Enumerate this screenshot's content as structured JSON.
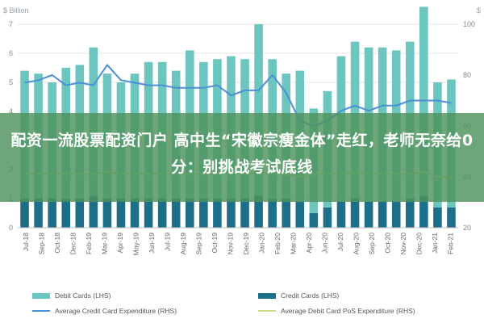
{
  "headline": "配资一流股票配资门户 高中生“宋徽宗瘦金体”走红，老师无奈给0分：别挑战考试底线",
  "chart_data": {
    "type": "bar",
    "y_left_unit": "$ Billion",
    "y_right_unit": "$",
    "ylim_left": [
      0,
      7
    ],
    "yticks_left": [
      "0",
      "1",
      "2",
      "3",
      "4",
      "5",
      "6",
      "7"
    ],
    "ylim_right": [
      20,
      100
    ],
    "yticks_right": [
      "20",
      "40",
      "60",
      "80",
      "100"
    ],
    "categories": [
      "Jul-18",
      "Aug-18",
      "Sep-18",
      "Oct-18",
      "Nov-18",
      "Dec-18",
      "Jan-19",
      "Feb-19",
      "Mar-19",
      "Apr-19",
      "May-19",
      "Jun-19",
      "Jul-19",
      "Aug-19",
      "Sep-19",
      "Oct-19",
      "Nov-19",
      "Dec-19",
      "Jan-20",
      "Feb-20",
      "Mar-20",
      "Apr-20",
      "May-20",
      "Jun-20",
      "Jul-20",
      "Aug-20",
      "Sep-20",
      "Oct-20",
      "Nov-20",
      "Dec-20",
      "Jan-21",
      "Feb-21"
    ],
    "xtick_labels": [
      "Jul-18",
      "Sep-18",
      "Oct-18",
      "Dec-18",
      "Feb-19",
      "Mar-19",
      "Apr-19",
      "May-19",
      "Jun-19",
      "Jul-19",
      "Aug-19",
      "Sep-19",
      "Oct-19",
      "Nov-19",
      "Dec-19",
      "Jan-20",
      "Feb-20",
      "Mar-20",
      "Apr-20",
      "Jun-20",
      "Jul-20",
      "Aug-20",
      "Sep-20",
      "Oct-20",
      "Nov-20",
      "Dec-20",
      "Jan-21",
      "Feb-21"
    ],
    "series": [
      {
        "name": "Debit Cards (LHS)",
        "type": "bar",
        "axis": "left",
        "color": "#6cc5bf",
        "values": [
          4.4,
          4.3,
          4.0,
          4.5,
          4.6,
          5.1,
          4.3,
          4.0,
          4.3,
          4.7,
          4.7,
          4.4,
          5.1,
          4.7,
          4.8,
          4.9,
          4.8,
          5.9,
          4.8,
          4.3,
          4.5,
          3.6,
          4.0,
          5.0,
          5.4,
          5.3,
          5.3,
          5.2,
          5.4,
          6.5,
          4.3,
          4.4
        ]
      },
      {
        "name": "Credit Cards (LHS)",
        "type": "bar",
        "axis": "left",
        "color": "#1d6e88",
        "values": [
          1.0,
          1.0,
          1.0,
          1.0,
          1.0,
          1.1,
          1.0,
          1.0,
          1.0,
          1.0,
          1.0,
          1.0,
          1.0,
          1.0,
          1.0,
          1.0,
          1.0,
          1.1,
          1.0,
          1.0,
          0.9,
          0.5,
          0.7,
          0.9,
          1.0,
          0.9,
          0.9,
          0.9,
          1.0,
          1.1,
          0.7,
          0.7
        ]
      },
      {
        "name": "Average Credit Card Expenditure (RHS)",
        "type": "line",
        "axis": "right",
        "color": "#4a90d9",
        "values": [
          77,
          78,
          80,
          76,
          77,
          76,
          84,
          78,
          77,
          76,
          76,
          75,
          75,
          75,
          76,
          72,
          74,
          74,
          80,
          73,
          62,
          60,
          62,
          66,
          68,
          66,
          68,
          68,
          70,
          70,
          70,
          69
        ]
      },
      {
        "name": "Average Debit Card PoS Expenditure (RHS)",
        "type": "line",
        "axis": "right",
        "color": "#c9dc8b",
        "values": [
          41,
          41,
          41,
          41,
          41,
          41,
          42,
          41,
          41,
          41,
          41,
          41,
          41,
          41,
          41,
          41,
          41,
          42,
          41,
          41,
          40,
          41,
          41,
          41,
          42,
          41,
          41,
          41,
          41,
          42,
          40,
          40
        ]
      }
    ],
    "grid": true,
    "legend_position": "bottom"
  }
}
